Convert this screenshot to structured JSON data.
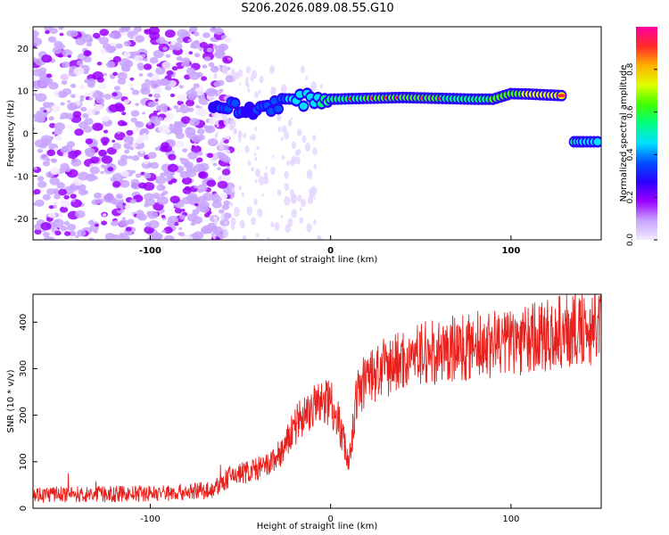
{
  "figure": {
    "title": "S206.2026.089.08.55.G10"
  },
  "chart_data": [
    {
      "type": "heatmap",
      "title": "S206.2026.089.08.55.G10",
      "xlabel": "Height of straight line (km)",
      "ylabel": "Frequency (Hz)",
      "xlim": [
        -165,
        150
      ],
      "ylim": [
        -25,
        25
      ],
      "x_ticks": [
        -100,
        0,
        100
      ],
      "y_ticks": [
        -20,
        -10,
        0,
        10,
        20
      ],
      "colorbar": {
        "label": "Normalized spectral amplitude",
        "range": [
          0.0,
          1.0
        ],
        "ticks": [
          0.0,
          0.2,
          0.4,
          0.6,
          0.8
        ],
        "tick_labels": [
          "0.0",
          "0.2",
          "0.4",
          "0.6",
          "0.8"
        ],
        "colormap": [
          "#f3eaff",
          "#c8a4ff",
          "#9a00ff",
          "#2a00ff",
          "#0050ff",
          "#00e0ff",
          "#00ff7f",
          "#40ff00",
          "#e0ff00",
          "#ffb000",
          "#ff2a2a",
          "#ff00a0"
        ]
      },
      "signal_ridge": {
        "x": [
          -65,
          -55,
          -45,
          -35,
          -25,
          -15,
          -5,
          0,
          10,
          20,
          30,
          40,
          50,
          60,
          70,
          80,
          90,
          100,
          110,
          120,
          130,
          135,
          140,
          150
        ],
        "y": [
          7,
          6,
          5,
          6.5,
          7.5,
          7.8,
          8.2,
          8,
          8.1,
          8.2,
          8.3,
          8.4,
          8.3,
          8.2,
          8.1,
          8.0,
          8.0,
          9.3,
          9.2,
          9.0,
          8.8,
          -2,
          -2,
          -2
        ],
        "amplitude": [
          0.3,
          0.35,
          0.3,
          0.35,
          0.4,
          0.45,
          0.5,
          0.5,
          0.55,
          0.6,
          0.6,
          0.6,
          0.6,
          0.6,
          0.55,
          0.55,
          0.6,
          0.65,
          0.7,
          0.75,
          0.7,
          0.5,
          0.45,
          0.45
        ]
      },
      "noise_region": {
        "x_range": [
          -165,
          -65
        ],
        "amplitude": 0.1
      }
    },
    {
      "type": "line",
      "xlabel": "Height of straight line (km)",
      "ylabel": "SNR (10 * v/v)",
      "xlim": [
        -165,
        150
      ],
      "ylim": [
        0,
        460
      ],
      "x_ticks": [
        -100,
        0,
        100
      ],
      "y_ticks": [
        0,
        100,
        200,
        300,
        400
      ],
      "color": "#e8201c",
      "series": [
        {
          "x": [
            -165,
            -150,
            -125,
            -100,
            -80,
            -65,
            -55,
            -45,
            -35,
            -25,
            -20,
            -15,
            -10,
            -5,
            0,
            5,
            10,
            15,
            20,
            30,
            40,
            50,
            60,
            70,
            80,
            90,
            100,
            110,
            120,
            130,
            140,
            150
          ],
          "values": [
            30,
            30,
            30,
            32,
            35,
            40,
            70,
            80,
            90,
            130,
            180,
            200,
            215,
            225,
            235,
            180,
            100,
            250,
            280,
            300,
            320,
            330,
            335,
            345,
            350,
            355,
            360,
            365,
            370,
            380,
            385,
            395
          ]
        }
      ]
    }
  ]
}
